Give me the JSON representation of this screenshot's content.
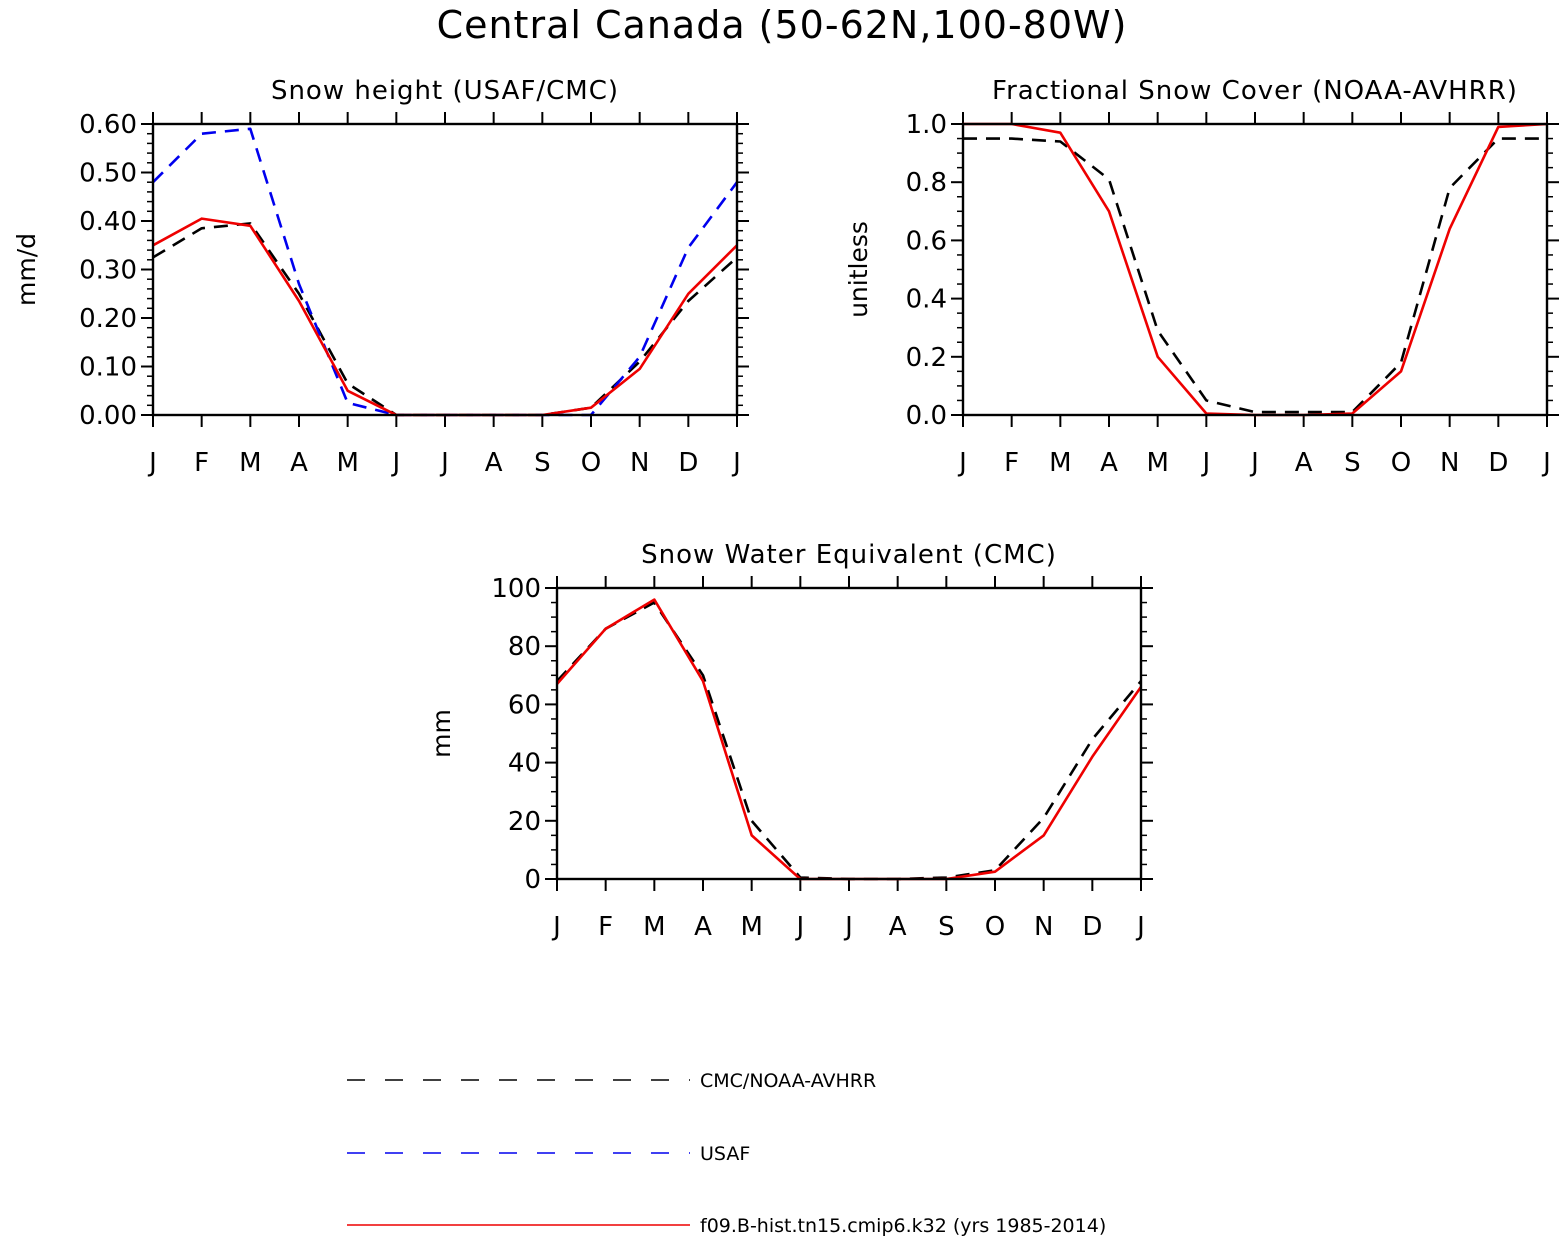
{
  "title": "Central Canada (50-62N,100-80W)",
  "legend": [
    {
      "label": "CMC/NOAA-AVHRR",
      "color": "#000000",
      "dash": "dashed"
    },
    {
      "label": "USAF",
      "color": "#0000ee",
      "dash": "dashed"
    },
    {
      "label": "f09.B-hist.tn15.cmip6.k32 (yrs 1985-2014)",
      "color": "#ee0000",
      "dash": "solid"
    }
  ],
  "chart_data": [
    {
      "type": "line",
      "title": "Snow height (USAF/CMC)",
      "xlabel": "",
      "ylabel": "mm/d",
      "categories": [
        "J",
        "F",
        "M",
        "A",
        "M",
        "J",
        "J",
        "A",
        "S",
        "O",
        "N",
        "D",
        "J"
      ],
      "ylim": [
        0,
        0.6
      ],
      "yticks": [
        "0.00",
        "0.10",
        "0.20",
        "0.30",
        "0.40",
        "0.50",
        "0.60"
      ],
      "series": [
        {
          "name": "CMC/NOAA-AVHRR",
          "color": "#000000",
          "dash": "dashed",
          "values": [
            0.325,
            0.385,
            0.395,
            0.25,
            0.065,
            0.0,
            0.0,
            0.0,
            0.0,
            0.015,
            0.11,
            0.235,
            0.325
          ]
        },
        {
          "name": "USAF",
          "color": "#0000ee",
          "dash": "dashed",
          "values": [
            0.48,
            0.58,
            0.59,
            0.27,
            0.025,
            0.0,
            0.0,
            0.0,
            0.0,
            0.0,
            0.12,
            0.345,
            0.48
          ]
        },
        {
          "name": "f09.B-hist.tn15.cmip6.k32 (yrs 1985-2014)",
          "color": "#ee0000",
          "dash": "solid",
          "values": [
            0.35,
            0.405,
            0.39,
            0.235,
            0.05,
            0.0,
            0.0,
            0.0,
            0.0,
            0.015,
            0.095,
            0.25,
            0.35
          ]
        }
      ]
    },
    {
      "type": "line",
      "title": "Fractional Snow Cover (NOAA-AVHRR)",
      "xlabel": "",
      "ylabel": "unitless",
      "categories": [
        "J",
        "F",
        "M",
        "A",
        "M",
        "J",
        "J",
        "A",
        "S",
        "O",
        "N",
        "D",
        "J"
      ],
      "ylim": [
        0,
        1.0
      ],
      "yticks": [
        "0.0",
        "0.2",
        "0.4",
        "0.6",
        "0.8",
        "1.0"
      ],
      "series": [
        {
          "name": "CMC/NOAA-AVHRR",
          "color": "#000000",
          "dash": "dashed",
          "values": [
            0.95,
            0.95,
            0.94,
            0.81,
            0.29,
            0.05,
            0.01,
            0.01,
            0.01,
            0.18,
            0.78,
            0.95,
            0.95
          ]
        },
        {
          "name": "f09.B-hist.tn15.cmip6.k32 (yrs 1985-2014)",
          "color": "#ee0000",
          "dash": "solid",
          "values": [
            1.0,
            1.0,
            0.97,
            0.7,
            0.2,
            0.005,
            0.0,
            0.0,
            0.005,
            0.15,
            0.64,
            0.99,
            1.0
          ]
        }
      ]
    },
    {
      "type": "line",
      "title": "Snow Water Equivalent (CMC)",
      "xlabel": "",
      "ylabel": "mm",
      "categories": [
        "J",
        "F",
        "M",
        "A",
        "M",
        "J",
        "J",
        "A",
        "S",
        "O",
        "N",
        "D",
        "J"
      ],
      "ylim": [
        0,
        100
      ],
      "yticks": [
        "0",
        "20",
        "40",
        "60",
        "80",
        "100"
      ],
      "series": [
        {
          "name": "CMC/NOAA-AVHRR",
          "color": "#000000",
          "dash": "dashed",
          "values": [
            68,
            86,
            95,
            70,
            20,
            0.5,
            0,
            0,
            0.5,
            3,
            21,
            48,
            68
          ]
        },
        {
          "name": "f09.B-hist.tn15.cmip6.k32 (yrs 1985-2014)",
          "color": "#ee0000",
          "dash": "solid",
          "values": [
            67,
            86,
            96,
            68,
            15,
            0,
            0,
            0,
            0,
            2.5,
            15,
            42,
            66
          ]
        }
      ]
    }
  ]
}
